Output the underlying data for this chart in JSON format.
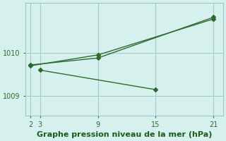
{
  "background_color": "#d6f0ee",
  "line_color": "#2d6a2d",
  "grid_color": "#a0c8c0",
  "title": "Graphe pression niveau de la mer (hPa)",
  "title_fontsize": 8,
  "title_color": "#1a5c1a",
  "xticks": [
    2,
    3,
    9,
    15,
    21
  ],
  "yticks": [
    1009,
    1010
  ],
  "xlim": [
    1.5,
    22
  ],
  "ylim": [
    1008.55,
    1011.15
  ],
  "lines": [
    {
      "x": [
        2,
        9,
        21
      ],
      "y": [
        1009.72,
        1009.88,
        1010.82
      ]
    },
    {
      "x": [
        2,
        9,
        21
      ],
      "y": [
        1009.7,
        1009.95,
        1010.78
      ]
    },
    {
      "x": [
        3,
        15
      ],
      "y": [
        1009.6,
        1009.15
      ]
    }
  ]
}
